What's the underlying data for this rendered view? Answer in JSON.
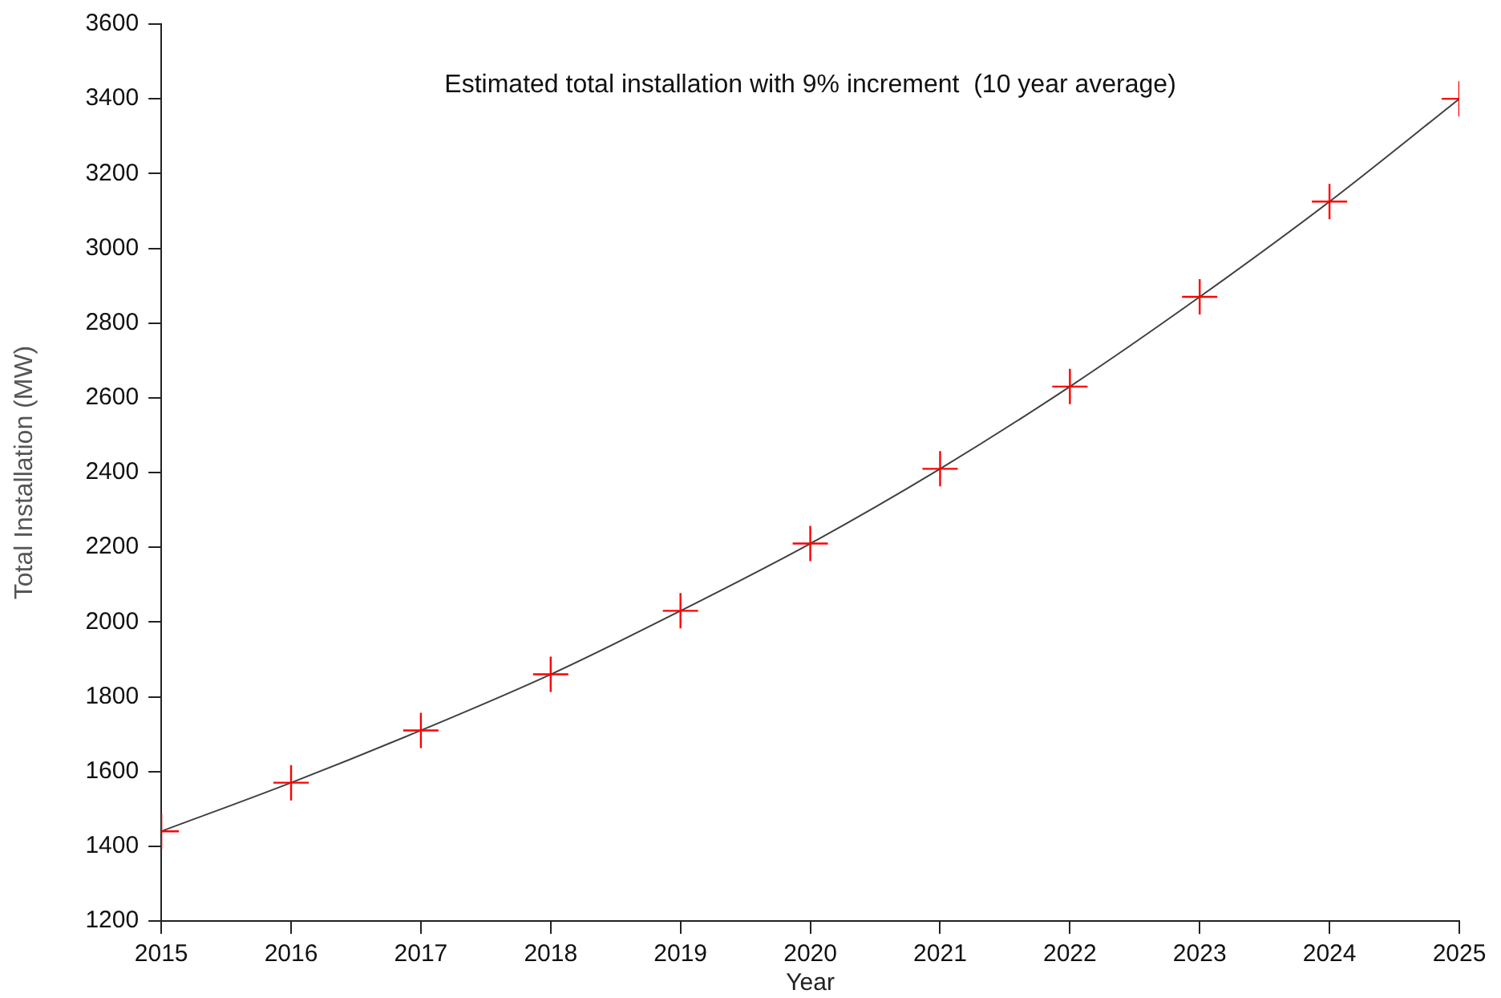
{
  "chart_data": {
    "type": "scatter",
    "xlabel": "Year",
    "ylabel": "Total Installation (MW)",
    "annotations": [
      "Estimated total installation with 9% increment  (10 year average)"
    ],
    "x": [
      2015,
      2016,
      2017,
      2018,
      2019,
      2020,
      2021,
      2022,
      2023,
      2024,
      2025
    ],
    "series": [
      {
        "color": "#ff0000",
        "marker": "cross",
        "values": [
          1440,
          1570,
          1710,
          1860,
          2030,
          2210,
          2410,
          2630,
          2870,
          3125,
          3400
        ]
      },
      {
        "type": "line",
        "color": "#404040",
        "marker": "none",
        "x": [
          2015,
          2016,
          2017,
          2018,
          2019,
          2020,
          2021,
          2022,
          2023,
          2024,
          2025
        ],
        "values": [
          1440,
          1570,
          1710,
          1860,
          2030,
          2210,
          2410,
          2630,
          2870,
          3125,
          3400
        ]
      }
    ],
    "xlim": [
      2015,
      2025
    ],
    "xticks": [
      2015,
      2016,
      2017,
      2018,
      2019,
      2020,
      2021,
      2022,
      2023,
      2024,
      2025
    ],
    "ylim": [
      1200,
      3600
    ],
    "yticks": [
      1200,
      1400,
      1600,
      1800,
      2000,
      2200,
      2400,
      2600,
      2800,
      3000,
      3200,
      3400,
      3600
    ],
    "grid": false,
    "legend": false
  }
}
